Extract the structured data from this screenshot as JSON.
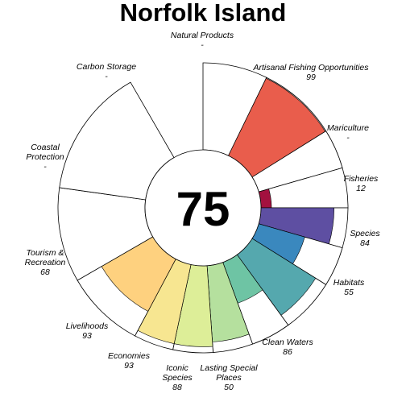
{
  "title": "Norfolk Island",
  "chart_data": {
    "type": "radial-bar",
    "title": "Norfolk Island",
    "center_value": "75",
    "max_value": 100,
    "goals": [
      {
        "key": "natural-products",
        "lines": [
          "Natural Products"
        ],
        "score_text": "-",
        "value": null,
        "color": "#ffffff"
      },
      {
        "key": "artisanal-fishing",
        "lines": [
          "Artisanal Fishing Opportunities"
        ],
        "score_text": "99",
        "value": 99,
        "color": "#E95D4C"
      },
      {
        "key": "mariculture",
        "lines": [
          "Mariculture"
        ],
        "score_text": "-",
        "value": null,
        "color": "#ffffff"
      },
      {
        "key": "fisheries",
        "lines": [
          "Fisheries"
        ],
        "score_text": "12",
        "value": 12,
        "color": "#A3113F"
      },
      {
        "key": "species",
        "lines": [
          "Species"
        ],
        "score_text": "84",
        "value": 84,
        "color": "#5E4FA2"
      },
      {
        "key": "habitats",
        "lines": [
          "Habitats"
        ],
        "score_text": "55",
        "value": 55,
        "color": "#3A88BE"
      },
      {
        "key": "clean-waters",
        "lines": [
          "Clean Waters"
        ],
        "score_text": "86",
        "value": 86,
        "color": "#55A8AE"
      },
      {
        "key": "lasting-special-places",
        "lines": [
          "Lasting Special",
          "Places"
        ],
        "score_text": "50",
        "value": 50,
        "color": "#6EC4A4"
      },
      {
        "key": "iconic-species",
        "lines": [
          "Iconic",
          "Species"
        ],
        "score_text": "88",
        "value": 88,
        "color": "#B5E09E"
      },
      {
        "key": "economies",
        "lines": [
          "Economies"
        ],
        "score_text": "93",
        "value": 93,
        "color": "#DDEE98"
      },
      {
        "key": "livelihoods",
        "lines": [
          "Livelihoods"
        ],
        "score_text": "93",
        "value": 93,
        "color": "#F7E691"
      },
      {
        "key": "tourism-recreation",
        "lines": [
          "Tourism &",
          "Recreation"
        ],
        "score_text": "68",
        "value": 68,
        "color": "#FED17F"
      },
      {
        "key": "coastal-protection",
        "lines": [
          "Coastal",
          "Protection"
        ],
        "score_text": "-",
        "value": null,
        "color": "#ffffff"
      },
      {
        "key": "carbon-storage",
        "lines": [
          "Carbon Storage"
        ],
        "score_text": "-",
        "value": null,
        "color": "#ffffff"
      }
    ]
  }
}
